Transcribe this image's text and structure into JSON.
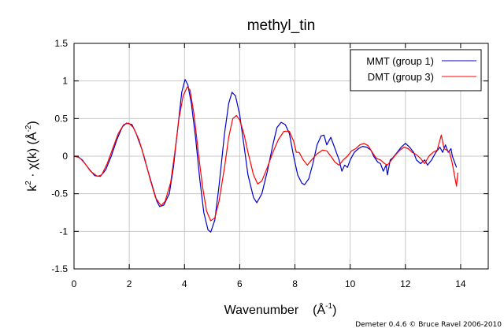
{
  "chart_data": {
    "type": "line",
    "title": "methyl_tin",
    "xlabel": {
      "base": "Wavenumber",
      "paren": "(Å",
      "sup": "-1",
      "close": ")"
    },
    "ylabel": {
      "k": "k",
      "ksup": "2",
      "mid": " · χ(k)   (Å",
      "sup": "-2",
      "close": ")"
    },
    "xlim": [
      0,
      15
    ],
    "ylim": [
      -1.5,
      1.5
    ],
    "xticks": [
      0,
      2,
      4,
      6,
      8,
      10,
      12,
      14
    ],
    "xtick_labels": [
      "0",
      "2",
      "4",
      "6",
      "8",
      "10",
      "12",
      "14"
    ],
    "yticks": [
      -1.5,
      -1,
      -0.5,
      0,
      0.5,
      1,
      1.5
    ],
    "ytick_labels": [
      "-1.5",
      "-1",
      "-0.5",
      "0",
      "0.5",
      "1",
      "1.5"
    ],
    "grid": true,
    "legend_position": "top-right",
    "series": [
      {
        "name": "MMT (group 1)",
        "color": "#0000cc",
        "points": [
          [
            0,
            0
          ],
          [
            0.15,
            -0.01
          ],
          [
            0.3,
            -0.05
          ],
          [
            0.5,
            -0.15
          ],
          [
            0.75,
            -0.26
          ],
          [
            0.95,
            -0.27
          ],
          [
            1.15,
            -0.18
          ],
          [
            1.35,
            0
          ],
          [
            1.55,
            0.22
          ],
          [
            1.75,
            0.39
          ],
          [
            1.9,
            0.44
          ],
          [
            2.1,
            0.42
          ],
          [
            2.25,
            0.3
          ],
          [
            2.45,
            0.1
          ],
          [
            2.6,
            -0.1
          ],
          [
            2.8,
            -0.35
          ],
          [
            3.0,
            -0.6
          ],
          [
            3.1,
            -0.67
          ],
          [
            3.25,
            -0.65
          ],
          [
            3.45,
            -0.5
          ],
          [
            3.6,
            -0.15
          ],
          [
            3.75,
            0.35
          ],
          [
            3.9,
            0.85
          ],
          [
            4.02,
            1.02
          ],
          [
            4.12,
            0.95
          ],
          [
            4.25,
            0.7
          ],
          [
            4.4,
            0.25
          ],
          [
            4.55,
            -0.3
          ],
          [
            4.7,
            -0.75
          ],
          [
            4.85,
            -0.98
          ],
          [
            4.95,
            -1.01
          ],
          [
            5.1,
            -0.85
          ],
          [
            5.25,
            -0.4
          ],
          [
            5.45,
            0.3
          ],
          [
            5.6,
            0.7
          ],
          [
            5.72,
            0.85
          ],
          [
            5.85,
            0.8
          ],
          [
            6.0,
            0.55
          ],
          [
            6.15,
            0.15
          ],
          [
            6.3,
            -0.25
          ],
          [
            6.5,
            -0.55
          ],
          [
            6.62,
            -0.62
          ],
          [
            6.8,
            -0.5
          ],
          [
            7.0,
            -0.2
          ],
          [
            7.2,
            0.15
          ],
          [
            7.35,
            0.38
          ],
          [
            7.5,
            0.45
          ],
          [
            7.65,
            0.42
          ],
          [
            7.8,
            0.3
          ],
          [
            7.95,
            0
          ],
          [
            8.1,
            -0.25
          ],
          [
            8.25,
            -0.36
          ],
          [
            8.35,
            -0.38
          ],
          [
            8.5,
            -0.3
          ],
          [
            8.65,
            -0.1
          ],
          [
            8.8,
            0.15
          ],
          [
            8.95,
            0.27
          ],
          [
            9.05,
            0.28
          ],
          [
            9.15,
            0.15
          ],
          [
            9.3,
            0.25
          ],
          [
            9.45,
            0.1
          ],
          [
            9.6,
            -0.05
          ],
          [
            9.7,
            -0.2
          ],
          [
            9.8,
            -0.12
          ],
          [
            9.9,
            -0.15
          ],
          [
            10.0,
            -0.05
          ],
          [
            10.15,
            0.05
          ],
          [
            10.3,
            0.1
          ],
          [
            10.45,
            0.13
          ],
          [
            10.6,
            0.12
          ],
          [
            10.75,
            0.08
          ],
          [
            10.85,
            0
          ],
          [
            11.0,
            -0.08
          ],
          [
            11.1,
            -0.1
          ],
          [
            11.2,
            -0.2
          ],
          [
            11.3,
            -0.12
          ],
          [
            11.35,
            -0.25
          ],
          [
            11.45,
            -0.05
          ],
          [
            11.55,
            -0.02
          ],
          [
            11.7,
            0.05
          ],
          [
            11.85,
            0.12
          ],
          [
            12.0,
            0.17
          ],
          [
            12.15,
            0.12
          ],
          [
            12.3,
            0.05
          ],
          [
            12.4,
            -0.05
          ],
          [
            12.55,
            -0.1
          ],
          [
            12.7,
            -0.05
          ],
          [
            12.8,
            -0.12
          ],
          [
            12.95,
            -0.05
          ],
          [
            13.1,
            0.05
          ],
          [
            13.25,
            0.12
          ],
          [
            13.35,
            0.05
          ],
          [
            13.45,
            0.15
          ],
          [
            13.55,
            0.05
          ],
          [
            13.65,
            0.1
          ],
          [
            13.7,
            0
          ],
          [
            13.85,
            -0.15
          ]
        ]
      },
      {
        "name": "DMT (group 3)",
        "color": "#ff0000",
        "points": [
          [
            0,
            0
          ],
          [
            0.2,
            -0.02
          ],
          [
            0.4,
            -0.1
          ],
          [
            0.6,
            -0.2
          ],
          [
            0.85,
            -0.27
          ],
          [
            1.0,
            -0.25
          ],
          [
            1.2,
            -0.1
          ],
          [
            1.4,
            0.1
          ],
          [
            1.6,
            0.3
          ],
          [
            1.8,
            0.42
          ],
          [
            1.98,
            0.44
          ],
          [
            2.15,
            0.38
          ],
          [
            2.35,
            0.22
          ],
          [
            2.55,
            -0.02
          ],
          [
            2.75,
            -0.3
          ],
          [
            2.95,
            -0.55
          ],
          [
            3.15,
            -0.66
          ],
          [
            3.3,
            -0.6
          ],
          [
            3.5,
            -0.35
          ],
          [
            3.65,
            0.05
          ],
          [
            3.8,
            0.5
          ],
          [
            3.95,
            0.8
          ],
          [
            4.1,
            0.92
          ],
          [
            4.2,
            0.88
          ],
          [
            4.35,
            0.55
          ],
          [
            4.5,
            0.05
          ],
          [
            4.65,
            -0.4
          ],
          [
            4.8,
            -0.73
          ],
          [
            4.95,
            -0.86
          ],
          [
            5.1,
            -0.82
          ],
          [
            5.25,
            -0.6
          ],
          [
            5.45,
            -0.15
          ],
          [
            5.6,
            0.25
          ],
          [
            5.75,
            0.5
          ],
          [
            5.88,
            0.54
          ],
          [
            6.0,
            0.48
          ],
          [
            6.15,
            0.3
          ],
          [
            6.3,
            0.05
          ],
          [
            6.5,
            -0.25
          ],
          [
            6.65,
            -0.37
          ],
          [
            6.8,
            -0.33
          ],
          [
            7.0,
            -0.15
          ],
          [
            7.2,
            0.05
          ],
          [
            7.4,
            0.22
          ],
          [
            7.6,
            0.33
          ],
          [
            7.8,
            0.33
          ],
          [
            7.95,
            0.2
          ],
          [
            8.05,
            0.05
          ],
          [
            8.15,
            0.05
          ],
          [
            8.3,
            -0.05
          ],
          [
            8.45,
            -0.12
          ],
          [
            8.6,
            -0.05
          ],
          [
            8.8,
            0.03
          ],
          [
            9.0,
            0.08
          ],
          [
            9.15,
            0.07
          ],
          [
            9.3,
            0
          ],
          [
            9.45,
            -0.08
          ],
          [
            9.6,
            -0.12
          ],
          [
            9.75,
            -0.05
          ],
          [
            9.9,
            0
          ],
          [
            10.05,
            0.07
          ],
          [
            10.2,
            0.1
          ],
          [
            10.35,
            0.15
          ],
          [
            10.5,
            0.17
          ],
          [
            10.65,
            0.14
          ],
          [
            10.8,
            0.05
          ],
          [
            10.95,
            -0.03
          ],
          [
            11.1,
            -0.05
          ],
          [
            11.25,
            -0.1
          ],
          [
            11.35,
            -0.12
          ],
          [
            11.5,
            -0.05
          ],
          [
            11.65,
            0.02
          ],
          [
            11.8,
            0.08
          ],
          [
            11.95,
            0.12
          ],
          [
            12.1,
            0.1
          ],
          [
            12.25,
            0.05
          ],
          [
            12.4,
            0.02
          ],
          [
            12.55,
            -0.03
          ],
          [
            12.7,
            -0.1
          ],
          [
            12.85,
            0
          ],
          [
            13.0,
            0.05
          ],
          [
            13.15,
            0.08
          ],
          [
            13.3,
            0.28
          ],
          [
            13.4,
            0.1
          ],
          [
            13.5,
            0.08
          ],
          [
            13.6,
            0.05
          ],
          [
            13.7,
            -0.1
          ],
          [
            13.8,
            -0.3
          ],
          [
            13.85,
            -0.4
          ],
          [
            13.9,
            -0.22
          ]
        ]
      }
    ]
  },
  "footer": {
    "credit": "Demeter 0.4.6 © Bruce Ravel 2006-2010"
  }
}
